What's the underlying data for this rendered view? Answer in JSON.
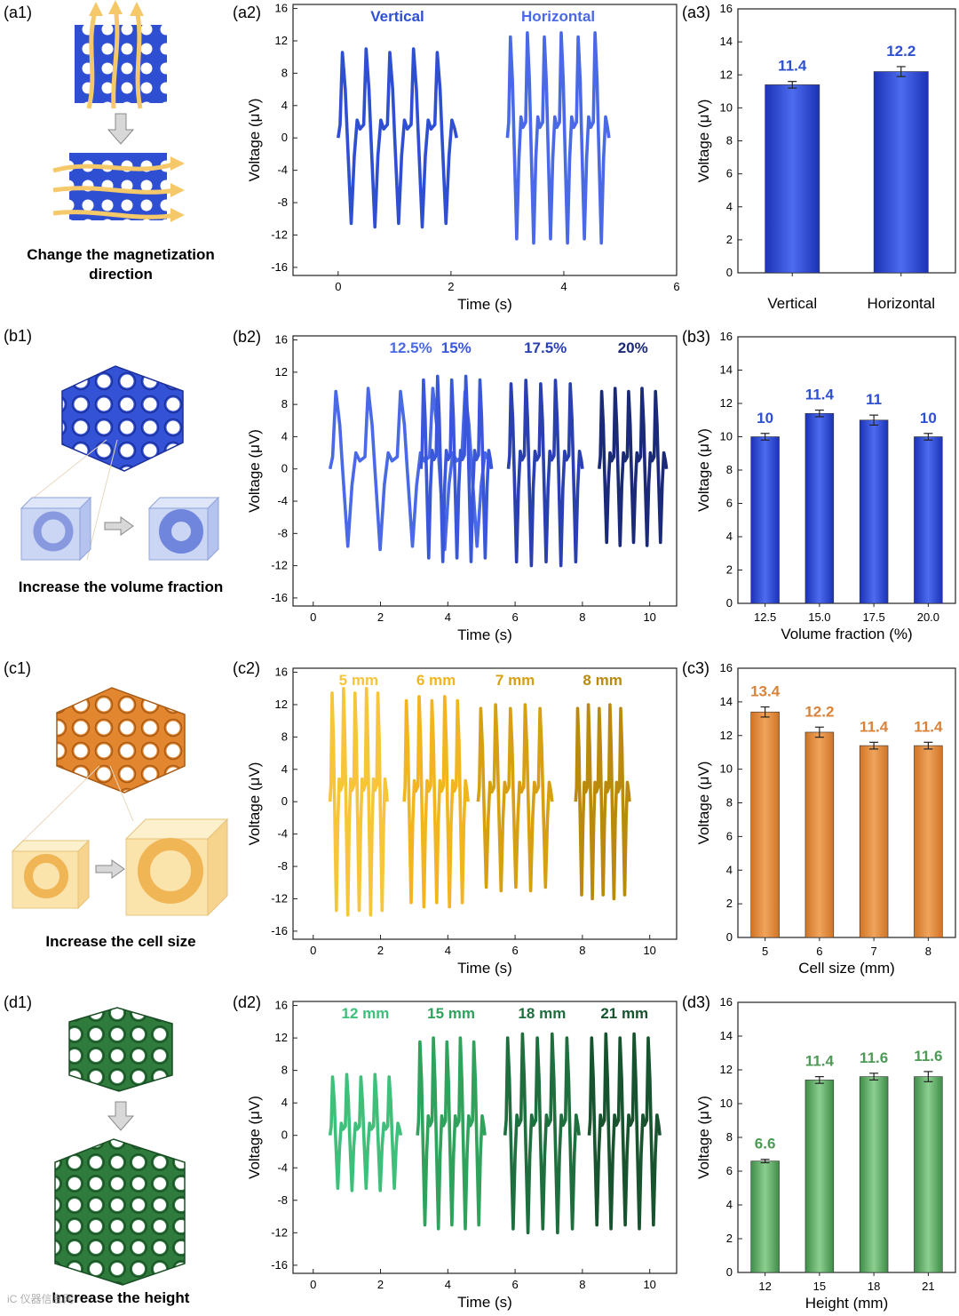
{
  "colors": {
    "a": "#2f4fd3",
    "a_light": "#4a69e6",
    "b": [
      "#4a69e6",
      "#3a56db",
      "#2a3fb0",
      "#1a2a78"
    ],
    "c": [
      "#f7c53a",
      "#f2b51f",
      "#d7a012",
      "#b98a0b"
    ],
    "c_bar": "#e48d3c",
    "c_label": "#d9823a",
    "d": [
      "#3ebf7a",
      "#2fa35c",
      "#1e6e3e",
      "#16532e"
    ],
    "d_bar": "#5aab62",
    "d_label": "#4e9a56",
    "arrow": "#f5c86a"
  },
  "rows": [
    {
      "id": "a",
      "left_label": "(a1)",
      "left_caption": [
        "Change the magnetization",
        "direction"
      ],
      "wave_label": "(a2)",
      "bar_label": "(a3)"
    },
    {
      "id": "b",
      "left_label": "(b1)",
      "left_caption": [
        "Increase the volume fraction"
      ],
      "wave_label": "(b2)",
      "bar_label": "(b3)"
    },
    {
      "id": "c",
      "left_label": "(c1)",
      "left_caption": [
        "Increase the cell size"
      ],
      "wave_label": "(c2)",
      "bar_label": "(c3)"
    },
    {
      "id": "d",
      "left_label": "(d1)",
      "left_caption": [
        "Increase the height"
      ],
      "wave_label": "(d2)",
      "bar_label": "(d3)"
    }
  ],
  "chart_data": [
    {
      "id": "a2",
      "type": "line",
      "xlabel": "Time (s)",
      "ylabel": "Voltage (μV)",
      "xlim": [
        -0.8,
        6
      ],
      "ylim": [
        -17,
        16.5
      ],
      "xticks": [
        0,
        2,
        4,
        6
      ],
      "yticks": [
        -16,
        -12,
        -8,
        -4,
        0,
        4,
        8,
        12,
        16
      ],
      "series": [
        {
          "name": "Vertical",
          "t0": 0.0,
          "t1": 2.1,
          "max": 11,
          "min": -11,
          "pulses": 5
        },
        {
          "name": "Horizontal",
          "t0": 3.0,
          "t1": 4.8,
          "max": 13,
          "min": -13,
          "pulses": 6
        }
      ]
    },
    {
      "id": "a3",
      "type": "bar",
      "categories": [
        "Vertical",
        "Horizontal"
      ],
      "values": [
        11.4,
        12.2
      ],
      "errors": [
        0.2,
        0.3
      ],
      "value_labels": [
        "11.4",
        "12.2"
      ],
      "xlabel": "",
      "ylabel": "Voltage (μV)",
      "ylim": [
        0,
        16
      ],
      "yticks": [
        0,
        2,
        4,
        6,
        8,
        10,
        12,
        14,
        16
      ]
    },
    {
      "id": "b2",
      "type": "line",
      "xlabel": "Time (s)",
      "ylabel": "Voltage (μV)",
      "xlim": [
        -0.6,
        10.8
      ],
      "ylim": [
        -17,
        16.5
      ],
      "xticks": [
        0,
        2,
        4,
        6,
        8,
        10
      ],
      "yticks": [
        -16,
        -12,
        -8,
        -4,
        0,
        4,
        8,
        12,
        16
      ],
      "series": [
        {
          "name": "12.5%",
          "t0": 0.5,
          "t1": 5.3,
          "max": 10,
          "min": -10,
          "pulses": 5,
          "t_end": 2.7
        },
        {
          "name": "15%",
          "t0": 3.2,
          "t1": 5.3,
          "max": 11.5,
          "min": -11.5,
          "pulses": 5
        },
        {
          "name": "17.5%",
          "t0": 5.8,
          "t1": 8.0,
          "max": 11,
          "min": -12,
          "pulses": 5
        },
        {
          "name": "20%",
          "t0": 8.5,
          "t1": 10.5,
          "max": 10,
          "min": -9.5,
          "pulses": 5
        }
      ]
    },
    {
      "id": "b3",
      "type": "bar",
      "categories": [
        "12.5",
        "15.0",
        "17.5",
        "20.0"
      ],
      "values": [
        10,
        11.4,
        11,
        10
      ],
      "errors": [
        0.2,
        0.2,
        0.3,
        0.2
      ],
      "value_labels": [
        "10",
        "11.4",
        "11",
        "10"
      ],
      "xlabel": "Volume fraction (%)",
      "ylabel": "Voltage (μV)",
      "ylim": [
        0,
        16
      ],
      "yticks": [
        0,
        2,
        4,
        6,
        8,
        10,
        12,
        14,
        16
      ]
    },
    {
      "id": "c2",
      "type": "line",
      "xlabel": "Time (s)",
      "ylabel": "Voltage (μV)",
      "xlim": [
        -0.6,
        10.8
      ],
      "ylim": [
        -17,
        16.5
      ],
      "xticks": [
        0,
        2,
        4,
        6,
        8,
        10
      ],
      "yticks": [
        -16,
        -12,
        -8,
        -4,
        0,
        4,
        8,
        12,
        16
      ],
      "series": [
        {
          "name": "5 mm",
          "t0": 0.5,
          "t1": 2.2,
          "max": 14,
          "min": -14,
          "pulses": 5
        },
        {
          "name": "6 mm",
          "t0": 2.7,
          "t1": 4.6,
          "max": 13,
          "min": -13,
          "pulses": 5
        },
        {
          "name": "7 mm",
          "t0": 4.9,
          "t1": 7.1,
          "max": 12,
          "min": -11,
          "pulses": 5
        },
        {
          "name": "8 mm",
          "t0": 7.8,
          "t1": 9.4,
          "max": 12,
          "min": -12,
          "pulses": 5
        }
      ]
    },
    {
      "id": "c3",
      "type": "bar",
      "categories": [
        "5",
        "6",
        "7",
        "8"
      ],
      "values": [
        13.4,
        12.2,
        11.4,
        11.4
      ],
      "errors": [
        0.3,
        0.3,
        0.2,
        0.2
      ],
      "value_labels": [
        "13.4",
        "12.2",
        "11.4",
        "11.4"
      ],
      "xlabel": "Cell size (mm)",
      "ylabel": "Voltage (μV)",
      "ylim": [
        0,
        16
      ],
      "yticks": [
        0,
        2,
        4,
        6,
        8,
        10,
        12,
        14,
        16
      ]
    },
    {
      "id": "d2",
      "type": "line",
      "xlabel": "Time (s)",
      "ylabel": "Voltage (μV)",
      "xlim": [
        -0.6,
        10.8
      ],
      "ylim": [
        -17,
        16.5
      ],
      "xticks": [
        0,
        2,
        4,
        6,
        8,
        10
      ],
      "yticks": [
        -16,
        -12,
        -8,
        -4,
        0,
        4,
        8,
        12,
        16
      ],
      "series": [
        {
          "name": "12 mm",
          "t0": 0.5,
          "t1": 2.6,
          "max": 7.5,
          "min": -6.8,
          "pulses": 5
        },
        {
          "name": "15 mm",
          "t0": 3.1,
          "t1": 5.1,
          "max": 12,
          "min": -11.5,
          "pulses": 5
        },
        {
          "name": "18 mm",
          "t0": 5.7,
          "t1": 7.9,
          "max": 12.5,
          "min": -12,
          "pulses": 5
        },
        {
          "name": "21 mm",
          "t0": 8.2,
          "t1": 10.3,
          "max": 12.5,
          "min": -11.5,
          "pulses": 5
        }
      ]
    },
    {
      "id": "d3",
      "type": "bar",
      "categories": [
        "12",
        "15",
        "18",
        "21"
      ],
      "values": [
        6.6,
        11.4,
        11.6,
        11.6
      ],
      "errors": [
        0.1,
        0.2,
        0.2,
        0.3
      ],
      "value_labels": [
        "6.6",
        "11.4",
        "11.6",
        "11.6"
      ],
      "xlabel": "Height (mm)",
      "ylabel": "Voltage (μV)",
      "ylim": [
        0,
        16
      ],
      "yticks": [
        0,
        2,
        4,
        6,
        8,
        10,
        12,
        14,
        16
      ]
    }
  ],
  "watermark": "iC 仪器信息网"
}
